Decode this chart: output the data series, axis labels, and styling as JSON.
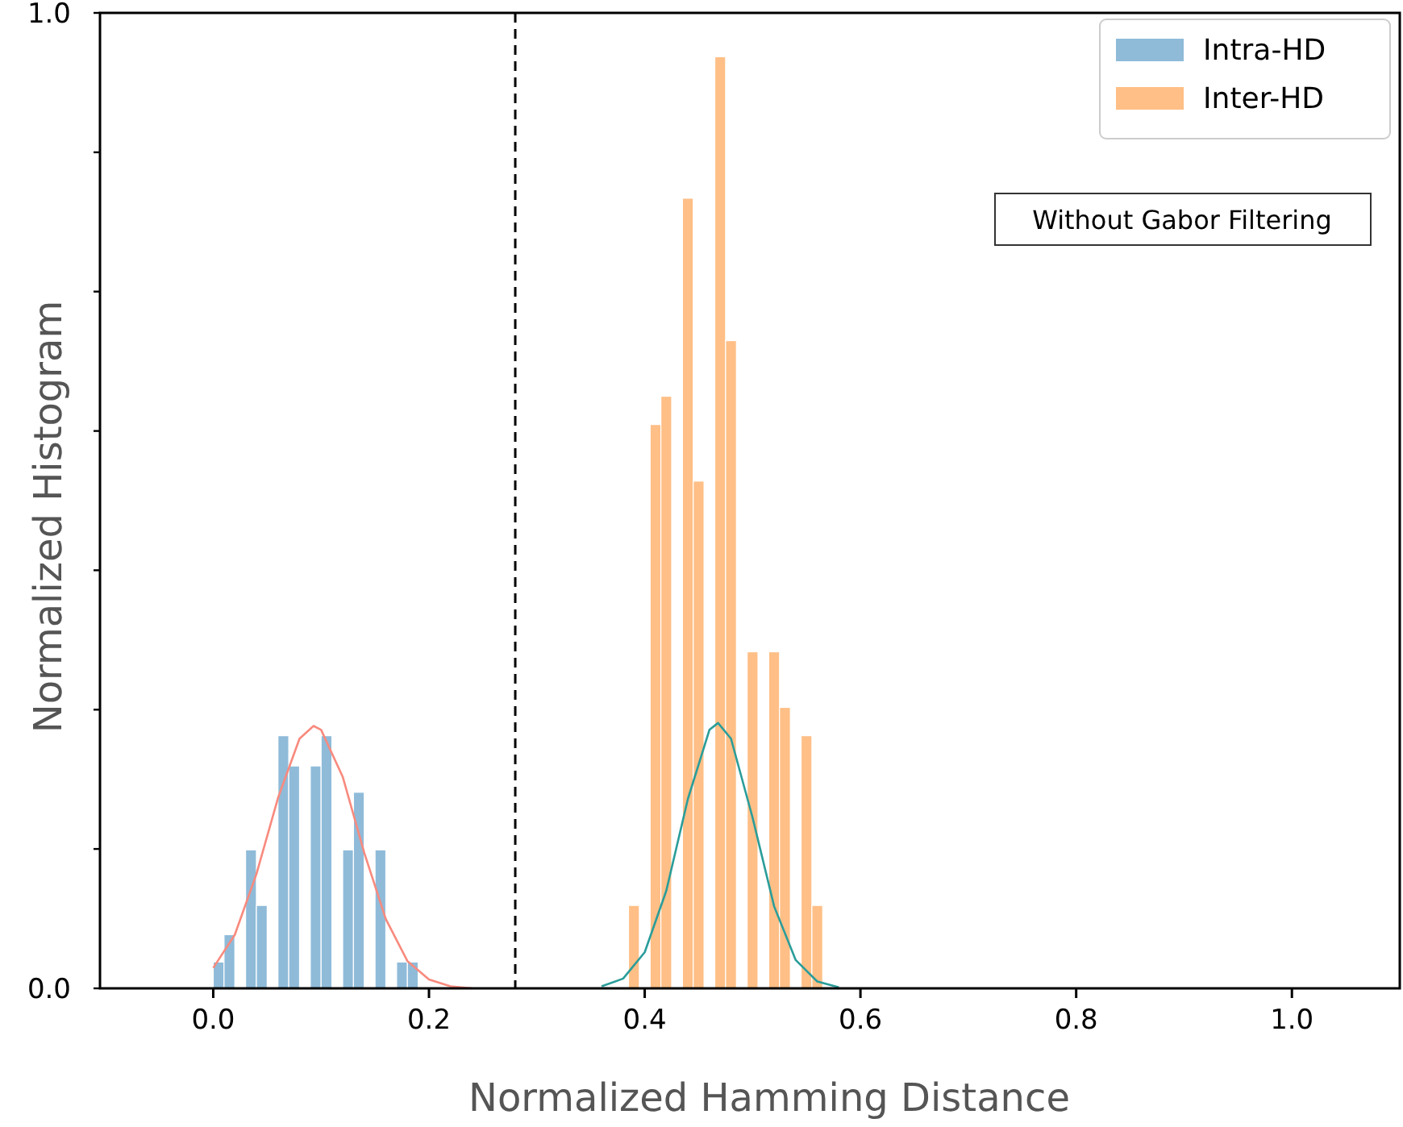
{
  "chart_data": {
    "type": "histogram",
    "xlabel": "Normalized Hamming Distance",
    "ylabel": "Normalized Histogram",
    "xlim": [
      -0.105,
      1.1
    ],
    "ylim": [
      0,
      1
    ],
    "xticks": [
      {
        "value": 0,
        "label": "0.0"
      },
      {
        "value": 0.2,
        "label": "0.2"
      },
      {
        "value": 0.4,
        "label": "0.4"
      },
      {
        "value": 0.6,
        "label": "0.6"
      },
      {
        "value": 0.8,
        "label": "0.8"
      },
      {
        "value": 1,
        "label": "1.0"
      }
    ],
    "yticks": [
      {
        "value": 0,
        "label": "0.0"
      },
      {
        "value": 0.1429,
        "label": null
      },
      {
        "value": 0.2857,
        "label": null
      },
      {
        "value": 0.4286,
        "label": null
      },
      {
        "value": 0.5714,
        "label": null
      },
      {
        "value": 0.7143,
        "label": null
      },
      {
        "value": 0.8571,
        "label": null
      },
      {
        "value": 1,
        "label": "1.0"
      }
    ],
    "grid": false,
    "legend": "top right",
    "annotations": [
      "Without Gabor Filtering"
    ],
    "ref_lines": [
      {
        "axis": "x",
        "value": 0.28,
        "color": "#000000",
        "line_style": "dashed"
      }
    ],
    "series": [
      {
        "name": "Intra-HD",
        "color": "#8fbbd9",
        "bins": [
          0,
          0.01,
          0.02,
          0.03,
          0.04,
          0.05,
          0.06,
          0.07,
          0.08,
          0.09,
          0.1,
          0.11,
          0.12,
          0.13,
          0.14,
          0.15,
          0.16,
          0.17,
          0.18,
          0.19
        ],
        "values": [
          0.027,
          0.055,
          0,
          0.142,
          0.085,
          0,
          0.259,
          0.228,
          0,
          0.228,
          0.259,
          0,
          0.142,
          0.201,
          0,
          0.142,
          0,
          0.027,
          0.027
        ]
      },
      {
        "name": "Inter-HD",
        "color": "#ffbf86",
        "bins": [
          0.385,
          0.395,
          0.405,
          0.415,
          0.425,
          0.435,
          0.445,
          0.455,
          0.465,
          0.475,
          0.485,
          0.495,
          0.505,
          0.515,
          0.525,
          0.535,
          0.545,
          0.555,
          0.565
        ],
        "values": [
          0.085,
          0,
          0.578,
          0.607,
          0,
          0.81,
          0.52,
          0,
          0.955,
          0.664,
          0,
          0.345,
          0,
          0.345,
          0.288,
          0,
          0.259,
          0.085
        ]
      },
      {
        "type": "line",
        "color": "#f88a7e",
        "x": [
          0,
          0.02,
          0.04,
          0.06,
          0.08,
          0.093,
          0.1,
          0.12,
          0.14,
          0.16,
          0.18,
          0.2,
          0.22,
          0.24
        ],
        "values": [
          0.021,
          0.055,
          0.117,
          0.195,
          0.256,
          0.269,
          0.265,
          0.217,
          0.139,
          0.071,
          0.028,
          0.009,
          0.002,
          0
        ]
      },
      {
        "type": "line",
        "color": "#2a9d9a",
        "x": [
          0.36,
          0.38,
          0.4,
          0.42,
          0.44,
          0.46,
          0.468,
          0.48,
          0.5,
          0.52,
          0.54,
          0.56,
          0.58
        ],
        "values": [
          0.002,
          0.01,
          0.037,
          0.1,
          0.194,
          0.265,
          0.272,
          0.256,
          0.175,
          0.084,
          0.029,
          0.007,
          0.001
        ]
      }
    ]
  }
}
